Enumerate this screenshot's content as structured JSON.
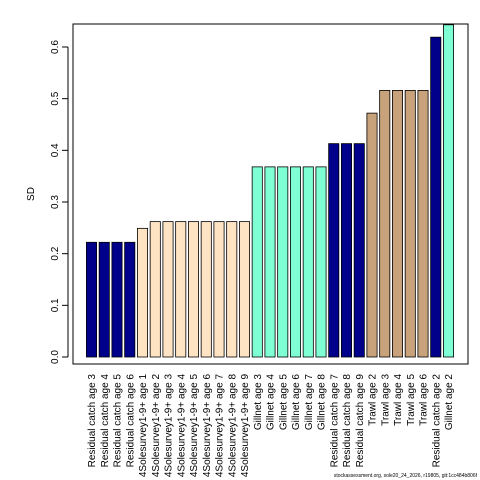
{
  "chart_data": {
    "type": "bar",
    "ylabel": "SD",
    "ylim": [
      0,
      0.65
    ],
    "yticks": [
      "0.0",
      "0.1",
      "0.2",
      "0.3",
      "0.4",
      "0.5",
      "0.6"
    ],
    "ytick_values": [
      0.0,
      0.1,
      0.2,
      0.3,
      0.4,
      0.5,
      0.6
    ],
    "grid": false,
    "colors": {
      "navy": "#00008B",
      "bisque": "#FFE4C4",
      "aquamarine": "#7FFFD4",
      "tan": "#C8A27A",
      "border": "#000000"
    },
    "categories": [
      "Residual catch age 3",
      "Residual catch age 4",
      "Residual catch age 5",
      "Residual catch age 6",
      "4Solesurvey1-9+ age 1",
      "4Solesurvey1-9+ age 2",
      "4Solesurvey1-9+ age 3",
      "4Solesurvey1-9+ age 4",
      "4Solesurvey1-9+ age 5",
      "4Solesurvey1-9+ age 6",
      "4Solesurvey1-9+ age 7",
      "4Solesurvey1-9+ age 8",
      "4Solesurvey1-9+ age 9",
      "Gillnet age 3",
      "Gillnet age 4",
      "Gillnet age 5",
      "Gillnet age 6",
      "Gillnet age 7",
      "Gillnet age 8",
      "Residual catch age 7",
      "Residual catch age 8",
      "Residual catch age 9",
      "Trawl age 2",
      "Trawl age 3",
      "Trawl age 4",
      "Trawl age 5",
      "Trawl age 6",
      "Residual catch age 2",
      "Gillnet age 2"
    ],
    "values": [
      0.222,
      0.222,
      0.222,
      0.222,
      0.249,
      0.262,
      0.262,
      0.262,
      0.262,
      0.262,
      0.262,
      0.262,
      0.262,
      0.368,
      0.368,
      0.368,
      0.368,
      0.368,
      0.368,
      0.413,
      0.413,
      0.413,
      0.472,
      0.516,
      0.516,
      0.516,
      0.516,
      0.619,
      0.643
    ],
    "bar_colors": [
      "#00008B",
      "#00008B",
      "#00008B",
      "#00008B",
      "#FFE4C4",
      "#FFE4C4",
      "#FFE4C4",
      "#FFE4C4",
      "#FFE4C4",
      "#FFE4C4",
      "#FFE4C4",
      "#FFE4C4",
      "#FFE4C4",
      "#7FFFD4",
      "#7FFFD4",
      "#7FFFD4",
      "#7FFFD4",
      "#7FFFD4",
      "#7FFFD4",
      "#00008B",
      "#00008B",
      "#00008B",
      "#C8A27A",
      "#C8A27A",
      "#C8A27A",
      "#C8A27A",
      "#C8A27A",
      "#00008B",
      "#7FFFD4"
    ]
  },
  "footnote": "stockassessment.org, sole20_24_2026, r19805, git:1cc484b806f"
}
